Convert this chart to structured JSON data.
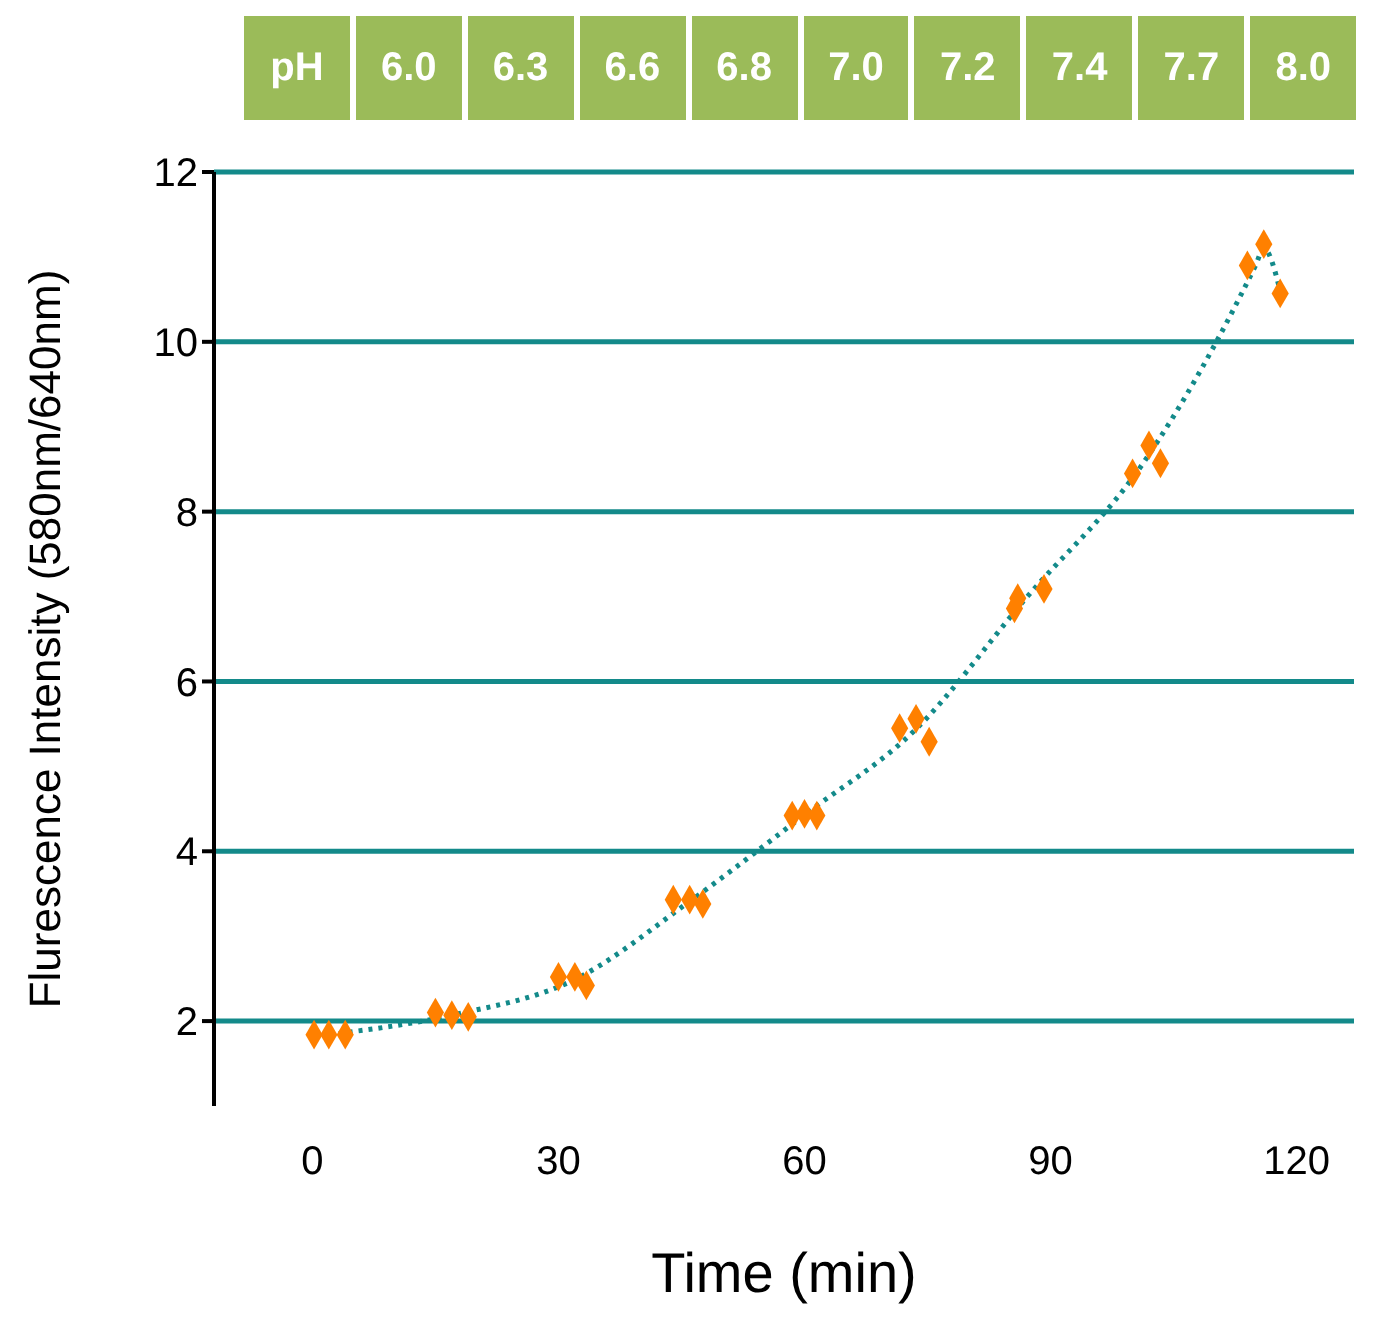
{
  "chart_data": {
    "type": "scatter",
    "xlabel": "Time (min)",
    "ylabel": "Flurescence Intensity (580nm/640nm)",
    "annotations": [
      "pH",
      "6.0",
      "6.3",
      "6.6",
      "6.8",
      "7.0",
      "7.2",
      "7.4",
      "7.7",
      "8.0"
    ],
    "xlim": [
      -12,
      127
    ],
    "xticks": [
      0,
      30,
      60,
      90,
      120
    ],
    "ylim": [
      1,
      12
    ],
    "yticks": [
      2,
      4,
      6,
      8,
      10,
      12
    ],
    "grid": "y",
    "series": [
      {
        "color": "#ff8000",
        "marker": "diamond",
        "x": [
          0.2,
          2,
          4,
          15,
          17,
          19,
          30,
          32,
          33.4,
          44,
          46,
          47.6,
          58.5,
          60,
          61.5,
          71.6,
          73.6,
          75.2,
          85.6,
          86,
          89.2,
          100,
          102,
          103.4,
          114,
          116,
          118
        ],
        "values": [
          1.84,
          1.84,
          1.84,
          2.1,
          2.07,
          2.05,
          2.52,
          2.52,
          2.42,
          3.43,
          3.43,
          3.38,
          4.42,
          4.44,
          4.42,
          5.45,
          5.56,
          5.29,
          6.86,
          6.98,
          7.09,
          8.45,
          8.78,
          8.57,
          10.9,
          11.15,
          10.57
        ]
      },
      {
        "type": "line",
        "color": "#138a8a",
        "marker": "none",
        "line_style": "dotted",
        "x": [
          2,
          17,
          32,
          46,
          60,
          73.5,
          87,
          101.5,
          115,
          116,
          118
        ],
        "values": [
          1.84,
          2.07,
          2.49,
          3.41,
          4.43,
          5.43,
          6.98,
          8.6,
          10.9,
          11.1,
          10.6
        ]
      }
    ]
  }
}
